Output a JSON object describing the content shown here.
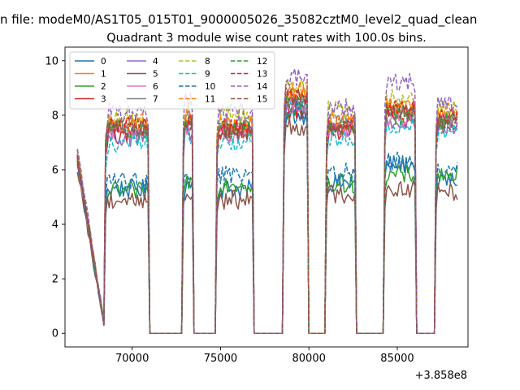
{
  "figure": {
    "suptitle": "n file: modeM0/AS1T05_015T01_9000005026_35082cztM0_level2_quad_clean",
    "offset_label": "+3.858e8"
  },
  "chart_data": {
    "type": "line",
    "title": "Quadrant 3 module wise count rates with 100.0s bins.",
    "xlabel": "",
    "ylabel": "",
    "xlim": [
      66200,
      89000
    ],
    "ylim": [
      -0.5,
      10.5
    ],
    "x_offset": 385800000,
    "x_ticks": [
      70000,
      75000,
      80000,
      85000
    ],
    "x_tick_labels": [
      "70000",
      "75000",
      "80000",
      "85000"
    ],
    "y_ticks": [
      0,
      2,
      4,
      6,
      8,
      10
    ],
    "y_tick_labels": [
      "0",
      "2",
      "4",
      "6",
      "8",
      "10"
    ],
    "grid": false,
    "legend_position": "top-left",
    "legend_columns": 4,
    "shape": {
      "segments": [
        [
          66900,
          68500
        ],
        [
          68500,
          71000
        ],
        [
          71000,
          72900
        ],
        [
          72900,
          73500
        ],
        [
          73500,
          74800
        ],
        [
          74800,
          76900
        ],
        [
          76900,
          78600
        ],
        [
          78600,
          80000
        ],
        [
          80000,
          81000
        ],
        [
          81000,
          82700
        ],
        [
          82700,
          84300
        ],
        [
          84300,
          86100
        ],
        [
          86100,
          87200
        ],
        [
          87200,
          88500
        ]
      ],
      "comment": "observing windows (x in data units); count rates are ~0 in gaps"
    },
    "series": [
      {
        "name": "0",
        "color": "#1f77b4",
        "dash": false,
        "levels": [
          6.4,
          5.3,
          0,
          5.5,
          0,
          5.3,
          0,
          8.0,
          0,
          5.5,
          0,
          6.2,
          0,
          5.6
        ]
      },
      {
        "name": "1",
        "color": "#ff7f0e",
        "dash": false,
        "levels": [
          6.6,
          7.6,
          0,
          7.9,
          0,
          7.6,
          0,
          8.8,
          0,
          7.6,
          0,
          8.2,
          0,
          8.0
        ]
      },
      {
        "name": "2",
        "color": "#2ca02c",
        "dash": false,
        "levels": [
          6.5,
          5.2,
          0,
          5.6,
          0,
          5.5,
          0,
          8.1,
          0,
          5.5,
          0,
          5.8,
          0,
          5.8
        ]
      },
      {
        "name": "3",
        "color": "#d62728",
        "dash": false,
        "levels": [
          6.3,
          7.3,
          0,
          7.5,
          0,
          7.4,
          0,
          8.2,
          0,
          7.4,
          0,
          7.9,
          0,
          7.7
        ]
      },
      {
        "name": "4",
        "color": "#9467bd",
        "dash": false,
        "levels": [
          6.2,
          7.2,
          0,
          7.4,
          0,
          7.3,
          0,
          8.3,
          0,
          7.5,
          0,
          7.8,
          0,
          7.6
        ]
      },
      {
        "name": "5",
        "color": "#8c564b",
        "dash": false,
        "levels": [
          6.0,
          4.9,
          0,
          5.1,
          0,
          4.9,
          0,
          7.6,
          0,
          5.1,
          0,
          5.3,
          0,
          5.2
        ]
      },
      {
        "name": "6",
        "color": "#e377c2",
        "dash": false,
        "levels": [
          6.3,
          7.4,
          0,
          7.6,
          0,
          7.3,
          0,
          8.4,
          0,
          7.5,
          0,
          7.9,
          0,
          7.8
        ]
      },
      {
        "name": "7",
        "color": "#7f7f7f",
        "dash": false,
        "levels": [
          6.5,
          7.6,
          0,
          7.9,
          0,
          7.6,
          0,
          8.6,
          0,
          7.7,
          0,
          8.1,
          0,
          7.9
        ]
      },
      {
        "name": "8",
        "color": "#bcbd22",
        "dash": true,
        "levels": [
          6.7,
          7.9,
          0,
          8.3,
          0,
          8.0,
          0,
          9.1,
          0,
          8.2,
          0,
          8.6,
          0,
          8.3
        ]
      },
      {
        "name": "9",
        "color": "#17becf",
        "dash": true,
        "levels": [
          6.4,
          7.0,
          0,
          7.3,
          0,
          7.0,
          0,
          8.4,
          0,
          7.2,
          0,
          7.6,
          0,
          7.5
        ]
      },
      {
        "name": "10",
        "color": "#1f77b4",
        "dash": true,
        "levels": [
          6.3,
          5.6,
          0,
          5.9,
          0,
          5.8,
          0,
          8.2,
          0,
          5.9,
          0,
          6.3,
          0,
          6.0
        ]
      },
      {
        "name": "11",
        "color": "#ff7f0e",
        "dash": true,
        "levels": [
          6.6,
          7.7,
          0,
          8.0,
          0,
          7.7,
          0,
          8.9,
          0,
          7.8,
          0,
          8.3,
          0,
          8.1
        ]
      },
      {
        "name": "12",
        "color": "#2ca02c",
        "dash": true,
        "levels": [
          6.4,
          7.5,
          0,
          7.7,
          0,
          7.5,
          0,
          8.5,
          0,
          7.6,
          0,
          8.0,
          0,
          7.8
        ]
      },
      {
        "name": "13",
        "color": "#d62728",
        "dash": true,
        "levels": [
          6.5,
          7.6,
          0,
          7.8,
          0,
          7.5,
          0,
          8.7,
          0,
          7.7,
          0,
          8.2,
          0,
          7.9
        ]
      },
      {
        "name": "14",
        "color": "#9467bd",
        "dash": true,
        "levels": [
          6.8,
          8.1,
          0,
          8.5,
          0,
          8.1,
          0,
          9.4,
          0,
          8.3,
          0,
          9.2,
          0,
          8.4
        ]
      },
      {
        "name": "15",
        "color": "#8c564b",
        "dash": true,
        "levels": [
          6.5,
          7.5,
          0,
          7.7,
          0,
          7.4,
          0,
          8.6,
          0,
          7.6,
          0,
          8.1,
          0,
          7.8
        ]
      }
    ]
  }
}
